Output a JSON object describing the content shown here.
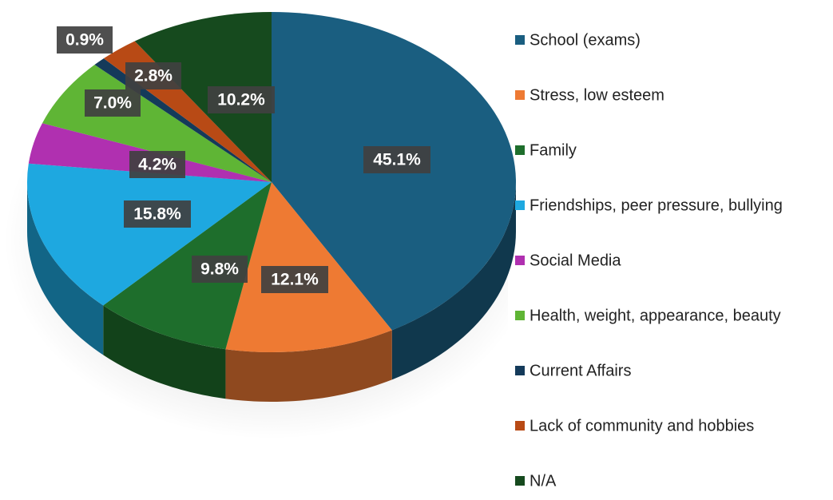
{
  "chart_data": {
    "type": "pie",
    "categories": [
      "School (exams)",
      "Stress, low esteem",
      "Family",
      "Friendships, peer pressure, bullying",
      "Social Media",
      "Health, weight, appearance, beauty",
      "Current Affairs",
      "Lack of community and hobbies",
      "N/A"
    ],
    "values": [
      45.1,
      12.1,
      9.8,
      15.8,
      4.2,
      7.0,
      0.9,
      2.8,
      10.2
    ],
    "value_labels": [
      "45.1%",
      "12.1%",
      "9.8%",
      "15.8%",
      "4.2%",
      "7.0%",
      "0.9%",
      "2.8%",
      "10.2%"
    ],
    "colors": [
      "#1a5e80",
      "#ee7a33",
      "#1e6e2c",
      "#1ea8e0",
      "#b030b0",
      "#5fb535",
      "#143a5a",
      "#b84a15",
      "#164a1e"
    ]
  }
}
